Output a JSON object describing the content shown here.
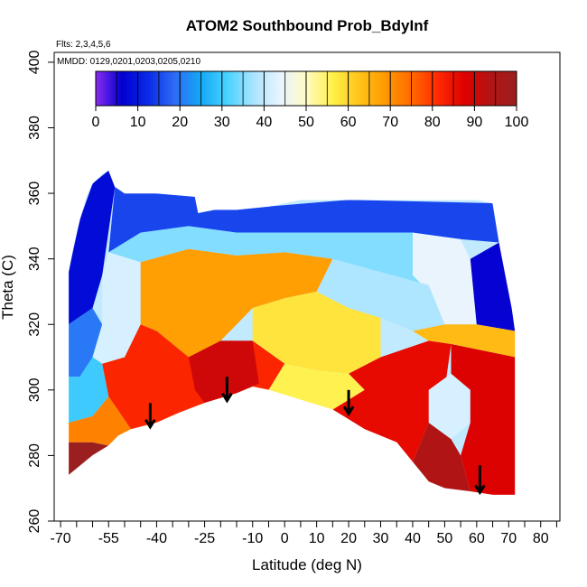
{
  "chart_data": {
    "type": "heatmap",
    "title": "ATOM2 Southbound Prob_BdyInf",
    "annotations": {
      "flights": "Flts: 2,3,4,5,6",
      "dates": "MMDD: 0129,0201,0203,0205,0210"
    },
    "xlabel": "Latitude (deg N)",
    "ylabel": "Theta (C)",
    "xlim": [
      -72,
      86
    ],
    "ylim": [
      260,
      403
    ],
    "x_ticks": [
      -70,
      -55,
      -40,
      -25,
      -10,
      0,
      10,
      20,
      30,
      40,
      50,
      60,
      70,
      80
    ],
    "x_tick_labels": [
      "-70",
      "-55",
      "-40",
      "-25",
      "-10",
      "0",
      "10",
      "20",
      "30",
      "40",
      "50",
      "60",
      "70",
      "80"
    ],
    "x_minor_ticks": [
      -65,
      -60,
      -50,
      -45,
      -35,
      -30,
      -20,
      -15,
      -5,
      5,
      15,
      25,
      35,
      45,
      55,
      65,
      75,
      85
    ],
    "y_ticks": [
      260,
      280,
      300,
      320,
      340,
      360,
      380,
      400
    ],
    "y_tick_labels": [
      "260",
      "280",
      "300",
      "320",
      "340",
      "360",
      "380",
      "400"
    ],
    "colorbar": {
      "range": [
        0,
        100
      ],
      "ticks": [
        0,
        10,
        20,
        30,
        40,
        50,
        60,
        70,
        80,
        90,
        100
      ],
      "tick_labels": [
        "0",
        "10",
        "20",
        "30",
        "40",
        "50",
        "60",
        "70",
        "80",
        "90",
        "100"
      ],
      "colors": [
        "#8B2BF0",
        "#0000D0",
        "#0A2BE6",
        "#2E6CF5",
        "#14A8F5",
        "#48D3FF",
        "#A9E4FF",
        "#E8F4FF",
        "#FFFBC4",
        "#FFF14A",
        "#FFC41A",
        "#FF9A00",
        "#FF6A00",
        "#FF2A00",
        "#E00000",
        "#B21414",
        "#9C1F1F"
      ]
    },
    "domain_boundary": {
      "top": [
        [
          -67.5,
          336
        ],
        [
          -66,
          344
        ],
        [
          -64,
          352
        ],
        [
          -62,
          359
        ],
        [
          -60,
          363
        ],
        [
          -57,
          366
        ],
        [
          -55,
          367
        ],
        [
          -53,
          362
        ],
        [
          -50,
          360
        ],
        [
          -40,
          360
        ],
        [
          -28,
          359
        ],
        [
          -27,
          354
        ],
        [
          -22,
          355
        ],
        [
          -15,
          355
        ],
        [
          -5,
          356
        ],
        [
          5,
          358
        ],
        [
          20,
          358
        ],
        [
          40,
          358
        ],
        [
          60,
          358
        ],
        [
          65,
          357
        ]
      ],
      "right": [
        [
          65,
          357
        ],
        [
          67,
          345
        ],
        [
          69,
          335
        ],
        [
          71,
          325
        ],
        [
          72,
          318
        ],
        [
          72,
          268
        ]
      ],
      "bottom": [
        [
          72,
          268
        ],
        [
          65,
          268
        ],
        [
          58,
          269
        ],
        [
          50,
          270
        ],
        [
          45,
          272
        ],
        [
          40,
          278
        ],
        [
          35,
          284
        ],
        [
          25,
          288
        ],
        [
          15,
          294
        ],
        [
          5,
          297
        ],
        [
          -5,
          300
        ],
        [
          -10,
          301
        ],
        [
          -15,
          299
        ],
        [
          -25,
          296
        ],
        [
          -33,
          293
        ],
        [
          -40,
          290
        ],
        [
          -48,
          288
        ],
        [
          -52,
          286
        ],
        [
          -55,
          283
        ],
        [
          -60,
          280
        ],
        [
          -67.5,
          274
        ]
      ]
    },
    "regions": [
      {
        "value": 8,
        "polygon": [
          [
            -67.5,
            320
          ],
          [
            -67.5,
            336
          ],
          [
            -64,
            352
          ],
          [
            -60,
            363
          ],
          [
            -55,
            367
          ],
          [
            -53,
            362
          ],
          [
            -57,
            335
          ],
          [
            -60,
            325
          ]
        ]
      },
      {
        "value": 15,
        "polygon": [
          [
            -53,
            362
          ],
          [
            -40,
            360
          ],
          [
            -28,
            359
          ],
          [
            -27,
            354
          ],
          [
            -22,
            355
          ],
          [
            -5,
            356
          ],
          [
            20,
            358
          ],
          [
            65,
            357
          ],
          [
            67,
            345
          ],
          [
            55,
            346
          ],
          [
            40,
            348
          ],
          [
            25,
            348
          ],
          [
            5,
            348
          ],
          [
            -15,
            348
          ],
          [
            -30,
            350
          ],
          [
            -45,
            348
          ],
          [
            -55,
            342
          ]
        ]
      },
      {
        "value": 6,
        "polygon": [
          [
            67,
            345
          ],
          [
            69,
            335
          ],
          [
            71,
            325
          ],
          [
            72,
            318
          ],
          [
            60,
            320
          ],
          [
            55,
            330
          ],
          [
            58,
            340
          ]
        ]
      },
      {
        "value": 35,
        "polygon": [
          [
            -55,
            342
          ],
          [
            -45,
            348
          ],
          [
            -30,
            350
          ],
          [
            -15,
            348
          ],
          [
            5,
            348
          ],
          [
            25,
            348
          ],
          [
            40,
            348
          ],
          [
            55,
            346
          ],
          [
            58,
            340
          ],
          [
            55,
            330
          ],
          [
            45,
            332
          ],
          [
            30,
            336
          ],
          [
            15,
            340
          ],
          [
            0,
            342
          ],
          [
            -15,
            341
          ],
          [
            -30,
            343
          ],
          [
            -45,
            339
          ]
        ]
      },
      {
        "value": 44,
        "polygon": [
          [
            40,
            348
          ],
          [
            55,
            346
          ],
          [
            58,
            340
          ],
          [
            60,
            320
          ],
          [
            50,
            320
          ],
          [
            45,
            330
          ],
          [
            40,
            335
          ]
        ]
      },
      {
        "value": 20,
        "polygon": [
          [
            -67.5,
            304
          ],
          [
            -67.5,
            320
          ],
          [
            -60,
            325
          ],
          [
            -57,
            320
          ],
          [
            -60,
            310
          ],
          [
            -64,
            304
          ]
        ]
      },
      {
        "value": 42,
        "polygon": [
          [
            -57,
            335
          ],
          [
            -55,
            342
          ],
          [
            -45,
            339
          ],
          [
            -45,
            320
          ],
          [
            -50,
            310
          ],
          [
            -57,
            308
          ],
          [
            -60,
            310
          ],
          [
            -57,
            320
          ]
        ]
      },
      {
        "value": 68,
        "polygon": [
          [
            -45,
            339
          ],
          [
            -30,
            343
          ],
          [
            -15,
            341
          ],
          [
            0,
            342
          ],
          [
            15,
            340
          ],
          [
            10,
            330
          ],
          [
            0,
            328
          ],
          [
            -10,
            325
          ],
          [
            -20,
            315
          ],
          [
            -30,
            310
          ],
          [
            -40,
            318
          ],
          [
            -45,
            320
          ]
        ]
      },
      {
        "value": 38,
        "polygon": [
          [
            15,
            340
          ],
          [
            30,
            336
          ],
          [
            45,
            332
          ],
          [
            50,
            320
          ],
          [
            40,
            318
          ],
          [
            30,
            322
          ],
          [
            20,
            325
          ],
          [
            10,
            330
          ]
        ]
      },
      {
        "value": 58,
        "polygon": [
          [
            -10,
            325
          ],
          [
            0,
            328
          ],
          [
            10,
            330
          ],
          [
            20,
            325
          ],
          [
            30,
            322
          ],
          [
            30,
            310
          ],
          [
            20,
            305
          ],
          [
            10,
            306
          ],
          [
            0,
            308
          ],
          [
            -10,
            315
          ]
        ]
      },
      {
        "value": 64,
        "polygon": [
          [
            40,
            318
          ],
          [
            50,
            320
          ],
          [
            60,
            320
          ],
          [
            72,
            318
          ],
          [
            72,
            310
          ],
          [
            62,
            312
          ],
          [
            52,
            314
          ],
          [
            45,
            315
          ]
        ]
      },
      {
        "value": 30,
        "polygon": [
          [
            -67.5,
            290
          ],
          [
            -67.5,
            304
          ],
          [
            -64,
            304
          ],
          [
            -60,
            310
          ],
          [
            -57,
            308
          ],
          [
            -55,
            298
          ],
          [
            -60,
            292
          ]
        ]
      },
      {
        "value": 82,
        "polygon": [
          [
            -57,
            308
          ],
          [
            -50,
            310
          ],
          [
            -45,
            320
          ],
          [
            -40,
            318
          ],
          [
            -30,
            310
          ],
          [
            -20,
            315
          ],
          [
            -10,
            315
          ],
          [
            0,
            308
          ],
          [
            -5,
            300
          ],
          [
            -15,
            299
          ],
          [
            -25,
            296
          ],
          [
            -33,
            293
          ],
          [
            -40,
            290
          ],
          [
            -48,
            288
          ],
          [
            -55,
            298
          ]
        ]
      },
      {
        "value": 90,
        "polygon": [
          [
            -30,
            310
          ],
          [
            -20,
            315
          ],
          [
            -10,
            315
          ],
          [
            -8,
            302
          ],
          [
            -15,
            299
          ],
          [
            -25,
            296
          ],
          [
            -28,
            300
          ]
        ]
      },
      {
        "value": 56,
        "polygon": [
          [
            0,
            308
          ],
          [
            10,
            306
          ],
          [
            20,
            305
          ],
          [
            25,
            300
          ],
          [
            15,
            294
          ],
          [
            5,
            297
          ],
          [
            -5,
            300
          ]
        ]
      },
      {
        "value": 86,
        "polygon": [
          [
            20,
            305
          ],
          [
            30,
            310
          ],
          [
            45,
            315
          ],
          [
            52,
            314
          ],
          [
            50,
            300
          ],
          [
            45,
            290
          ],
          [
            40,
            278
          ],
          [
            35,
            284
          ],
          [
            25,
            288
          ],
          [
            15,
            294
          ],
          [
            25,
            300
          ]
        ]
      },
      {
        "value": 42,
        "polygon": [
          [
            45,
            300
          ],
          [
            52,
            305
          ],
          [
            58,
            300
          ],
          [
            58,
            290
          ],
          [
            52,
            285
          ],
          [
            45,
            290
          ]
        ]
      },
      {
        "value": 88,
        "polygon": [
          [
            52,
            314
          ],
          [
            62,
            312
          ],
          [
            72,
            310
          ],
          [
            72,
            268
          ],
          [
            65,
            268
          ],
          [
            58,
            269
          ],
          [
            55,
            280
          ],
          [
            58,
            290
          ],
          [
            58,
            300
          ],
          [
            52,
            305
          ]
        ]
      },
      {
        "value": 94,
        "polygon": [
          [
            40,
            278
          ],
          [
            45,
            272
          ],
          [
            50,
            270
          ],
          [
            58,
            269
          ],
          [
            55,
            280
          ],
          [
            52,
            285
          ],
          [
            45,
            290
          ]
        ]
      },
      {
        "value": 72,
        "polygon": [
          [
            -67.5,
            284
          ],
          [
            -67.5,
            290
          ],
          [
            -60,
            292
          ],
          [
            -55,
            298
          ],
          [
            -48,
            288
          ],
          [
            -52,
            286
          ],
          [
            -55,
            283
          ],
          [
            -60,
            284
          ]
        ]
      },
      {
        "value": 100,
        "polygon": [
          [
            -67.5,
            274
          ],
          [
            -67.5,
            284
          ],
          [
            -60,
            284
          ],
          [
            -55,
            283
          ],
          [
            -60,
            280
          ]
        ]
      }
    ],
    "arrows": [
      {
        "x": -42,
        "y_from": 296,
        "y_to": 289
      },
      {
        "x": -18,
        "y_from": 304,
        "y_to": 297
      },
      {
        "x": 20,
        "y_from": 300,
        "y_to": 293
      },
      {
        "x": 61,
        "y_from": 277,
        "y_to": 269
      }
    ],
    "grid": false,
    "legend": "none"
  }
}
